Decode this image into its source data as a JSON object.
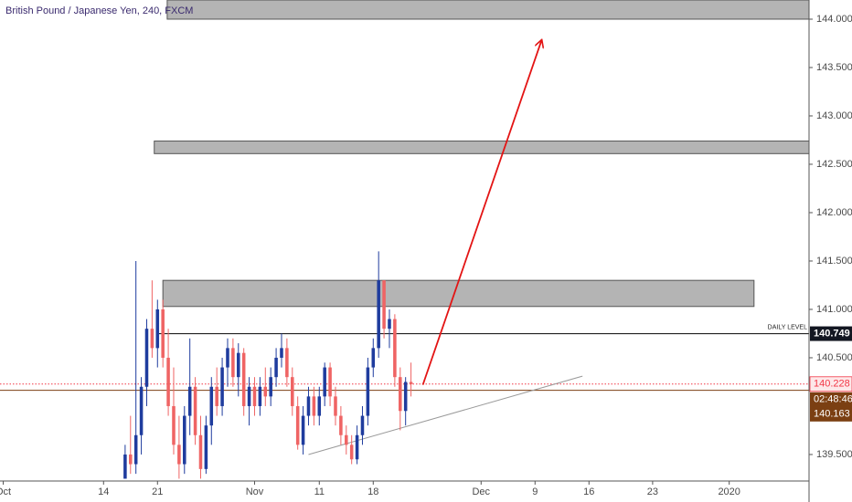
{
  "chart_data": {
    "type": "candlestick",
    "title": "British Pound / Japanese Yen, 240, FXCM",
    "xlim": [
      -9.6,
      65.4
    ],
    "ylim": [
      139.226,
      144.198
    ],
    "xticks": [
      {
        "value": -9.3,
        "label": "Oct"
      },
      {
        "value": 0,
        "label": "14"
      },
      {
        "value": 5,
        "label": "21"
      },
      {
        "value": 14,
        "label": "Nov"
      },
      {
        "value": 20,
        "label": "11"
      },
      {
        "value": 25,
        "label": "18"
      },
      {
        "value": 35,
        "label": "Dec"
      },
      {
        "value": 40,
        "label": "9"
      },
      {
        "value": 45,
        "label": "16"
      },
      {
        "value": 50.9,
        "label": "23"
      },
      {
        "value": 58,
        "label": "2020"
      }
    ],
    "yticks": [
      {
        "value": 139.5,
        "label": "139.500"
      },
      {
        "value": 140.5,
        "label": "140.500"
      },
      {
        "value": 141,
        "label": "141.000"
      },
      {
        "value": 141.5,
        "label": "141.500"
      },
      {
        "value": 142,
        "label": "142.000"
      },
      {
        "value": 142.5,
        "label": "142.500"
      },
      {
        "value": 143,
        "label": "143.000"
      },
      {
        "value": 143.5,
        "label": "143.500"
      },
      {
        "value": 144,
        "label": "144.000"
      }
    ],
    "up_color": "#1f3c9e",
    "down_color": "#ef6464",
    "x": [
      2,
      2.5,
      3,
      3.5,
      4,
      4.5,
      5,
      5.5,
      6,
      6.5,
      7,
      7.5,
      8,
      8.5,
      9,
      9.5,
      10,
      10.5,
      11,
      11.5,
      12,
      12.5,
      13,
      13.5,
      14,
      14.5,
      15,
      15.5,
      16,
      16.5,
      17,
      17.5,
      18,
      18.5,
      19,
      19.5,
      20,
      20.5,
      21,
      21.5,
      22,
      22.5,
      23,
      23.5,
      24,
      24.5,
      25,
      25.5,
      26,
      26.5,
      27,
      27.5,
      28,
      28.5
    ],
    "open": [
      139.25,
      139.5,
      139.4,
      139.7,
      140.2,
      140.8,
      140.6,
      141.0,
      140.5,
      140.0,
      139.6,
      139.4,
      139.9,
      140.2,
      139.7,
      139.35,
      139.8,
      140.2,
      140.0,
      140.4,
      140.6,
      140.3,
      140.55,
      140.0,
      140.2,
      140.0,
      140.2,
      140.1,
      140.3,
      140.5,
      140.6,
      140.3,
      140.0,
      139.6,
      139.9,
      140.1,
      139.9,
      140.1,
      140.4,
      140.1,
      139.9,
      139.7,
      139.6,
      139.45,
      139.7,
      139.9,
      140.4,
      140.6,
      141.3,
      140.8,
      140.9,
      140.3,
      139.95,
      140.25
    ],
    "high": [
      139.6,
      139.9,
      141.5,
      140.3,
      140.9,
      141.3,
      141.1,
      141.1,
      140.8,
      140.4,
      139.9,
      140.0,
      140.7,
      140.3,
      139.9,
      139.9,
      140.3,
      140.4,
      140.5,
      140.7,
      140.7,
      140.65,
      140.6,
      140.3,
      140.3,
      140.3,
      140.4,
      140.4,
      140.6,
      140.75,
      140.7,
      140.4,
      140.1,
      140.0,
      140.2,
      140.2,
      140.2,
      140.45,
      140.45,
      140.2,
      140.0,
      139.8,
      139.7,
      139.8,
      140.0,
      140.5,
      140.7,
      141.6,
      141.3,
      141.0,
      140.95,
      140.4,
      140.3,
      140.45
    ],
    "low": [
      139.25,
      139.3,
      139.3,
      139.5,
      140.0,
      140.5,
      140.4,
      140.4,
      139.9,
      139.5,
      139.25,
      139.3,
      139.7,
      139.6,
      139.25,
      139.3,
      139.6,
      139.9,
      139.9,
      140.2,
      140.2,
      140.1,
      139.9,
      139.8,
      139.9,
      139.9,
      140.0,
      140.0,
      140.2,
      140.4,
      140.2,
      139.9,
      139.55,
      139.5,
      139.8,
      139.8,
      139.8,
      140.0,
      140.0,
      139.8,
      139.6,
      139.5,
      139.4,
      139.4,
      139.6,
      139.8,
      140.3,
      140.5,
      140.7,
      140.6,
      140.2,
      139.75,
      139.8,
      140.1
    ],
    "close": [
      139.5,
      139.4,
      139.7,
      140.2,
      140.8,
      140.6,
      141.0,
      140.5,
      140.0,
      139.6,
      139.4,
      139.9,
      140.2,
      139.7,
      139.35,
      139.8,
      140.2,
      140.0,
      140.4,
      140.6,
      140.3,
      140.55,
      140.0,
      140.2,
      140.0,
      140.2,
      140.1,
      140.3,
      140.5,
      140.6,
      140.3,
      140.0,
      139.6,
      139.9,
      140.1,
      139.9,
      140.1,
      140.4,
      140.1,
      139.9,
      139.7,
      139.6,
      139.45,
      139.7,
      139.9,
      140.4,
      140.6,
      141.3,
      140.8,
      140.9,
      140.3,
      139.95,
      140.25,
      140.228
    ],
    "zones": [
      {
        "x0": 5.9,
        "x1": 65.4,
        "y0": 144.0,
        "y1": 144.198
      },
      {
        "x0": 4.7,
        "x1": 65.4,
        "y0": 142.61,
        "y1": 142.74
      },
      {
        "x0": 5.5,
        "x1": 60.3,
        "y0": 141.03,
        "y1": 141.3
      }
    ],
    "zone_color": "#b4b4b4",
    "daily_level": {
      "value": 140.749,
      "label": "DAILY LEVEL",
      "price_label": "140.749",
      "x0": 5
    },
    "last_price": {
      "value": 140.228,
      "label": "140.228",
      "color": "#f23645"
    },
    "bid_price": {
      "value": 140.163,
      "label": "140.163",
      "countdown": "02:48:46",
      "color": "#7b3f12"
    },
    "trendline": {
      "x": [
        19,
        44.4
      ],
      "y": [
        139.5,
        140.31
      ],
      "color": "#9a9a9a"
    },
    "arrow": {
      "x": [
        29.6,
        40.6
      ],
      "y": [
        140.22,
        143.78
      ],
      "color": "#e31414"
    }
  }
}
